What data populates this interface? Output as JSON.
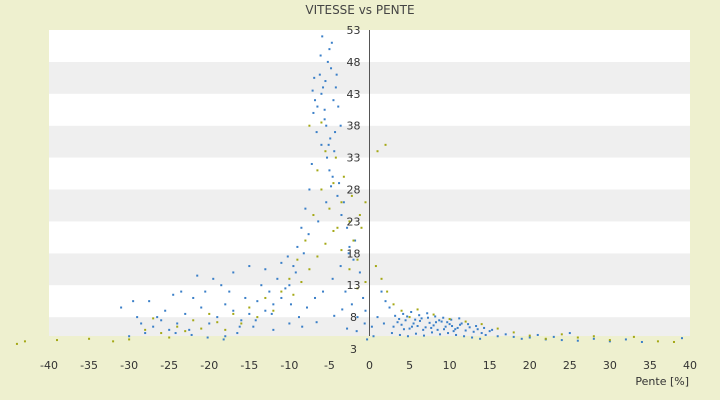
{
  "chart_data": {
    "type": "scatter",
    "title": "VITESSE vs PENTE",
    "xlabel": "Pente [%]",
    "ylabel": "",
    "xlim": [
      -40,
      40
    ],
    "ylim": [
      3,
      53
    ],
    "x_ticks": [
      -40,
      -35,
      -30,
      -25,
      -20,
      -15,
      -10,
      -5,
      0,
      5,
      10,
      15,
      20,
      25,
      30,
      35,
      40
    ],
    "y_ticks": [
      3,
      8,
      13,
      18,
      23,
      28,
      33,
      38,
      43,
      48,
      53
    ],
    "grid": "horizontal alternating bands",
    "legend": "none",
    "series": [
      {
        "color": "#3a7fc8",
        "points": [
          [
            -6,
            43
          ],
          [
            -5.5,
            45
          ],
          [
            -4.8,
            47
          ],
          [
            -6.5,
            41
          ],
          [
            -5.8,
            44
          ],
          [
            -4.5,
            42
          ],
          [
            -7,
            40
          ],
          [
            -5.2,
            48
          ],
          [
            -6.2,
            46
          ],
          [
            -5,
            50
          ],
          [
            -4.2,
            44
          ],
          [
            -6.8,
            42
          ],
          [
            -5.6,
            39
          ],
          [
            -4.9,
            36
          ],
          [
            -5.3,
            33
          ],
          [
            -4.6,
            30
          ],
          [
            -4,
            27
          ],
          [
            -3.5,
            24
          ],
          [
            -6,
            35
          ],
          [
            -5,
            31
          ],
          [
            -5.4,
            38
          ],
          [
            -4.4,
            34
          ],
          [
            -3.8,
            29
          ],
          [
            -3.2,
            26
          ],
          [
            -2.8,
            22
          ],
          [
            -2.5,
            19
          ],
          [
            -2,
            17
          ],
          [
            -6.6,
            37
          ],
          [
            -7.2,
            32
          ],
          [
            -7.5,
            28
          ],
          [
            -8,
            25
          ],
          [
            -8.5,
            22
          ],
          [
            -9,
            19
          ],
          [
            -9.5,
            16
          ],
          [
            -10,
            13
          ],
          [
            -11,
            11
          ],
          [
            -12,
            10
          ],
          [
            -13,
            9
          ],
          [
            -14,
            10.5
          ],
          [
            -15,
            8.5
          ],
          [
            -16,
            7.5
          ],
          [
            -17,
            9
          ],
          [
            -18,
            10
          ],
          [
            -19,
            8
          ],
          [
            -20,
            7
          ],
          [
            -21,
            9.5
          ],
          [
            -22,
            11
          ],
          [
            -23,
            8.5
          ],
          [
            -24,
            7
          ],
          [
            -25,
            6
          ],
          [
            -26,
            7.5
          ],
          [
            -27,
            6.5
          ],
          [
            -28,
            5.5
          ],
          [
            -29,
            8
          ],
          [
            -30,
            5
          ],
          [
            -12.5,
            12
          ],
          [
            -13.5,
            13
          ],
          [
            -11.5,
            14
          ],
          [
            -10.5,
            12.5
          ],
          [
            -9.8,
            10
          ],
          [
            -15.5,
            11
          ],
          [
            -17.5,
            12
          ],
          [
            -18.5,
            13
          ],
          [
            -20.5,
            12
          ],
          [
            -14.5,
            6.5
          ],
          [
            -16.5,
            5.5
          ],
          [
            -18,
            5
          ],
          [
            -12,
            6
          ],
          [
            -10,
            7
          ],
          [
            -8.8,
            8
          ],
          [
            -7.8,
            9.5
          ],
          [
            -6.8,
            11
          ],
          [
            -5.8,
            12
          ],
          [
            -4.6,
            14
          ],
          [
            -3.6,
            16
          ],
          [
            -2.6,
            18
          ],
          [
            -1.8,
            20
          ],
          [
            -1.2,
            15
          ],
          [
            -0.8,
            11
          ],
          [
            -0.5,
            9
          ],
          [
            -1.5,
            8
          ],
          [
            -2.2,
            10
          ],
          [
            -3,
            12
          ],
          [
            -9.2,
            15
          ],
          [
            -8.2,
            18
          ],
          [
            -7.6,
            21
          ],
          [
            -6.4,
            23
          ],
          [
            -5.4,
            26
          ],
          [
            -4.8,
            28.5
          ],
          [
            -5.6,
            40.5
          ],
          [
            -6.1,
            49
          ],
          [
            -4.7,
            51
          ],
          [
            -5.9,
            52
          ],
          [
            -6.9,
            45.5
          ],
          [
            -7.1,
            43.5
          ],
          [
            -4.1,
            46
          ],
          [
            -3.9,
            41
          ],
          [
            -3.6,
            38
          ],
          [
            -4.3,
            37
          ],
          [
            -5.1,
            35
          ],
          [
            -25.5,
            9
          ],
          [
            -27.5,
            10.5
          ],
          [
            -22.5,
            6
          ],
          [
            -23.5,
            12
          ],
          [
            -19.5,
            14
          ],
          [
            -21.5,
            14.5
          ],
          [
            -24.5,
            11.5
          ],
          [
            -26.5,
            8
          ],
          [
            -28.5,
            7
          ],
          [
            -31,
            9.5
          ],
          [
            -29.5,
            10.5
          ],
          [
            -17,
            15
          ],
          [
            -15,
            16
          ],
          [
            -13,
            15.5
          ],
          [
            -11,
            16.5
          ],
          [
            -10.2,
            17.5
          ],
          [
            -12.2,
            8.5
          ],
          [
            -14.2,
            7.5
          ],
          [
            -16.2,
            6.5
          ],
          [
            -18.2,
            4.5
          ],
          [
            -20.2,
            4.8
          ],
          [
            -22.2,
            5.2
          ],
          [
            -24.2,
            5.5
          ],
          [
            -8.4,
            6.5
          ],
          [
            -6.6,
            7.2
          ],
          [
            -4.4,
            8.2
          ],
          [
            -2.8,
            6.2
          ],
          [
            -1.6,
            5.8
          ],
          [
            -0.6,
            7
          ],
          [
            -3.4,
            9.2
          ],
          [
            3,
            6.5
          ],
          [
            3.5,
            7.2
          ],
          [
            4,
            6.8
          ],
          [
            4.5,
            7.5
          ],
          [
            5,
            6.2
          ],
          [
            5.5,
            7
          ],
          [
            6,
            6.6
          ],
          [
            6.5,
            7.8
          ],
          [
            7,
            6.4
          ],
          [
            7.5,
            7.1
          ],
          [
            8,
            6.7
          ],
          [
            8.5,
            6
          ],
          [
            9,
            7.3
          ],
          [
            9.5,
            6.5
          ],
          [
            10,
            6.9
          ],
          [
            10.5,
            5.8
          ],
          [
            11,
            6.3
          ],
          [
            11.5,
            7
          ],
          [
            12,
            5.9
          ],
          [
            12.5,
            6.4
          ],
          [
            13,
            5.7
          ],
          [
            13.5,
            6.1
          ],
          [
            14,
            5.5
          ],
          [
            14.5,
            5.2
          ],
          [
            15,
            5.8
          ],
          [
            16,
            5
          ],
          [
            17,
            5.3
          ],
          [
            18,
            4.9
          ],
          [
            19,
            4.6
          ],
          [
            20,
            4.8
          ],
          [
            3.2,
            8.2
          ],
          [
            4.2,
            8.5
          ],
          [
            5.2,
            8.8
          ],
          [
            6.2,
            8.3
          ],
          [
            7.2,
            8.6
          ],
          [
            8.2,
            8.1
          ],
          [
            9.2,
            7.9
          ],
          [
            10.2,
            7.6
          ],
          [
            11.2,
            7.8
          ],
          [
            2.5,
            9.5
          ],
          [
            2,
            10.5
          ],
          [
            1.5,
            12
          ],
          [
            1,
            8
          ],
          [
            1.8,
            7
          ],
          [
            2.8,
            5.5
          ],
          [
            3.8,
            5.2
          ],
          [
            4.8,
            5
          ],
          [
            5.8,
            5.4
          ],
          [
            6.8,
            5.1
          ],
          [
            7.8,
            5.6
          ],
          [
            8.8,
            5.3
          ],
          [
            9.8,
            5.5
          ],
          [
            10.8,
            5.2
          ],
          [
            11.8,
            5
          ],
          [
            12.8,
            4.8
          ],
          [
            13.8,
            4.6
          ],
          [
            22,
            4.5
          ],
          [
            24,
            4.4
          ],
          [
            26,
            4.3
          ],
          [
            28,
            4.6
          ],
          [
            30,
            4.2
          ],
          [
            32,
            4.5
          ],
          [
            34,
            4.1
          ],
          [
            39,
            4.7
          ],
          [
            21,
            5.2
          ],
          [
            23,
            4.9
          ],
          [
            25,
            5.5
          ],
          [
            0.5,
            5
          ],
          [
            0.3,
            6.5
          ],
          [
            -0.3,
            4.5
          ],
          [
            6.3,
            7.4
          ],
          [
            7.3,
            7.9
          ],
          [
            8.3,
            7.2
          ],
          [
            9.3,
            6.1
          ],
          [
            10.3,
            6.6
          ],
          [
            11.3,
            6.8
          ],
          [
            4.3,
            6.1
          ],
          [
            5.3,
            6.5
          ],
          [
            6.7,
            6
          ],
          [
            7.7,
            6.3
          ],
          [
            5.7,
            7.6
          ],
          [
            8.7,
            7.5
          ],
          [
            9.7,
            7.2
          ],
          [
            10.7,
            6.1
          ],
          [
            3.7,
            7.7
          ],
          [
            4.7,
            8.1
          ],
          [
            12.3,
            6.9
          ],
          [
            13.3,
            6.6
          ],
          [
            14.3,
            6.3
          ],
          [
            15.3,
            6
          ]
        ]
      },
      {
        "color": "#a4a816",
        "points": [
          [
            -5.5,
            34
          ],
          [
            -6.5,
            31
          ],
          [
            -4.5,
            29
          ],
          [
            -3.5,
            26
          ],
          [
            -2.5,
            23
          ],
          [
            -2,
            20
          ],
          [
            -1.5,
            17
          ],
          [
            -4,
            22
          ],
          [
            -5,
            25
          ],
          [
            -6,
            28
          ],
          [
            -7,
            24
          ],
          [
            -8,
            20
          ],
          [
            -9,
            17
          ],
          [
            -10,
            14
          ],
          [
            -11,
            12
          ],
          [
            -12,
            9
          ],
          [
            -14,
            8
          ],
          [
            -16,
            7
          ],
          [
            -18,
            6
          ],
          [
            -20,
            8.5
          ],
          [
            -22,
            7.5
          ],
          [
            -24,
            6.5
          ],
          [
            -26,
            5.5
          ],
          [
            -28,
            6
          ],
          [
            -30,
            4.5
          ],
          [
            -32,
            4.2
          ],
          [
            -35,
            4.6
          ],
          [
            -39,
            4.4
          ],
          [
            -44,
            3.8
          ],
          [
            -43,
            4.2
          ],
          [
            -1,
            22
          ],
          [
            -0.5,
            26
          ],
          [
            1,
            34
          ],
          [
            2,
            35
          ],
          [
            0.8,
            16
          ],
          [
            1.5,
            14
          ],
          [
            2.2,
            12
          ],
          [
            3,
            10
          ],
          [
            4,
            9
          ],
          [
            5,
            8
          ],
          [
            6,
            9.2
          ],
          [
            8,
            8.4
          ],
          [
            10,
            7.7
          ],
          [
            12,
            7.3
          ],
          [
            14,
            6.9
          ],
          [
            16,
            6.2
          ],
          [
            18,
            5.6
          ],
          [
            20,
            5.1
          ],
          [
            22,
            4.6
          ],
          [
            24,
            5.3
          ],
          [
            26,
            4.8
          ],
          [
            28,
            5
          ],
          [
            30,
            4.4
          ],
          [
            33,
            4.9
          ],
          [
            36,
            4.2
          ],
          [
            38,
            4.1
          ],
          [
            -7.5,
            38
          ],
          [
            -6,
            38.5
          ],
          [
            -4.2,
            33
          ],
          [
            -3.2,
            30
          ],
          [
            -2.2,
            27
          ],
          [
            -1.2,
            24
          ],
          [
            -13,
            11
          ],
          [
            -15,
            9.5
          ],
          [
            -17,
            8.5
          ],
          [
            -19,
            7.2
          ],
          [
            -21,
            6.2
          ],
          [
            -23,
            5.8
          ],
          [
            -25,
            4.8
          ],
          [
            -27,
            7.8
          ],
          [
            -9.5,
            11.5
          ],
          [
            -8.5,
            13.5
          ],
          [
            -7.5,
            15.5
          ],
          [
            -6.5,
            17.5
          ],
          [
            -5.5,
            19.5
          ],
          [
            -4.5,
            21.5
          ],
          [
            -3.5,
            18.5
          ],
          [
            -2.5,
            15.5
          ],
          [
            -1.5,
            12.5
          ],
          [
            -0.5,
            13.5
          ]
        ]
      }
    ]
  }
}
